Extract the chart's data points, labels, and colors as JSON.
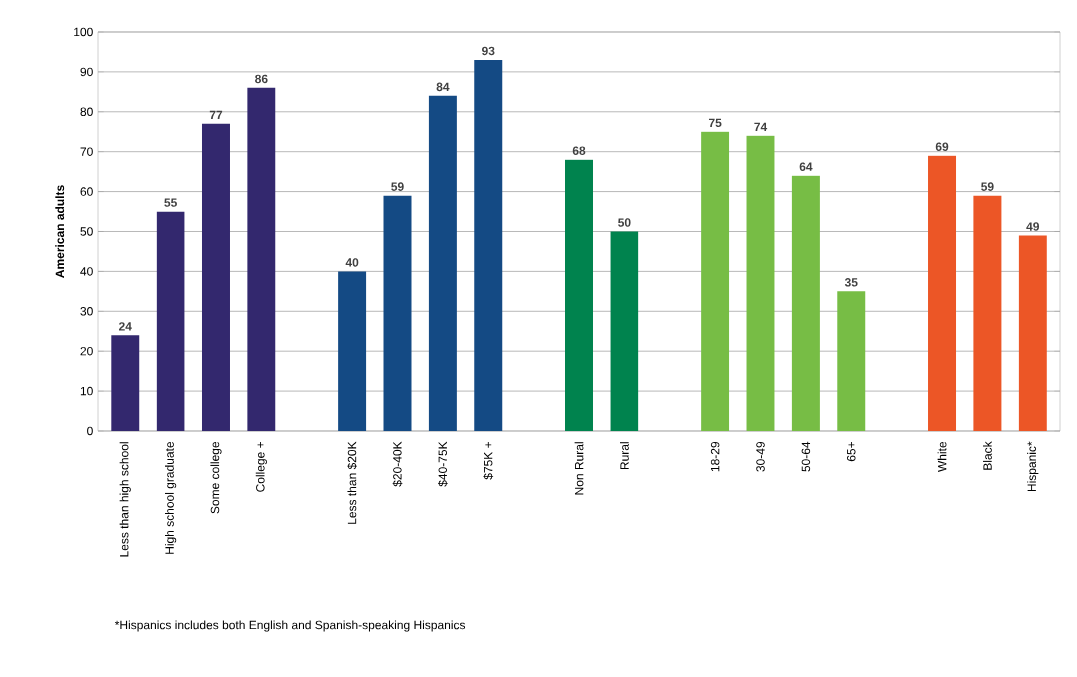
{
  "chart_data": {
    "type": "bar",
    "ylabel": "American adults",
    "categories": [
      "Less than high school",
      "High school graduate",
      "Some college",
      "College +",
      null,
      "Less than $20K",
      "$20-40K",
      "$40-75K",
      "$75K +",
      null,
      "Non Rural",
      "Rural",
      null,
      "18-29",
      "30-49",
      "50-64",
      "65+",
      null,
      "White",
      "Black",
      "Hispanic*"
    ],
    "values": [
      24,
      55,
      77,
      86,
      null,
      40,
      59,
      84,
      93,
      null,
      68,
      50,
      null,
      75,
      74,
      64,
      35,
      null,
      69,
      59,
      49
    ],
    "colors": [
      "#33286e",
      "#33286e",
      "#33286e",
      "#33286e",
      "#ffffff",
      "#144a84",
      "#144a84",
      "#144a84",
      "#144a84",
      "#ffffff",
      "#00834e",
      "#00834e",
      "#ffffff",
      "#77bd45",
      "#77bd45",
      "#77bd45",
      "#77bd45",
      "#ffffff",
      "#ec5626",
      "#ec5626",
      "#ec5626"
    ],
    "ylim": [
      0,
      100
    ],
    "yticks": [
      0,
      10,
      20,
      30,
      40,
      50,
      60,
      70,
      80,
      90,
      100
    ],
    "grid": "y",
    "data_labels": true,
    "annotations": [
      "*Hispanics includes both English and Spanish-speaking Hispanics"
    ]
  }
}
